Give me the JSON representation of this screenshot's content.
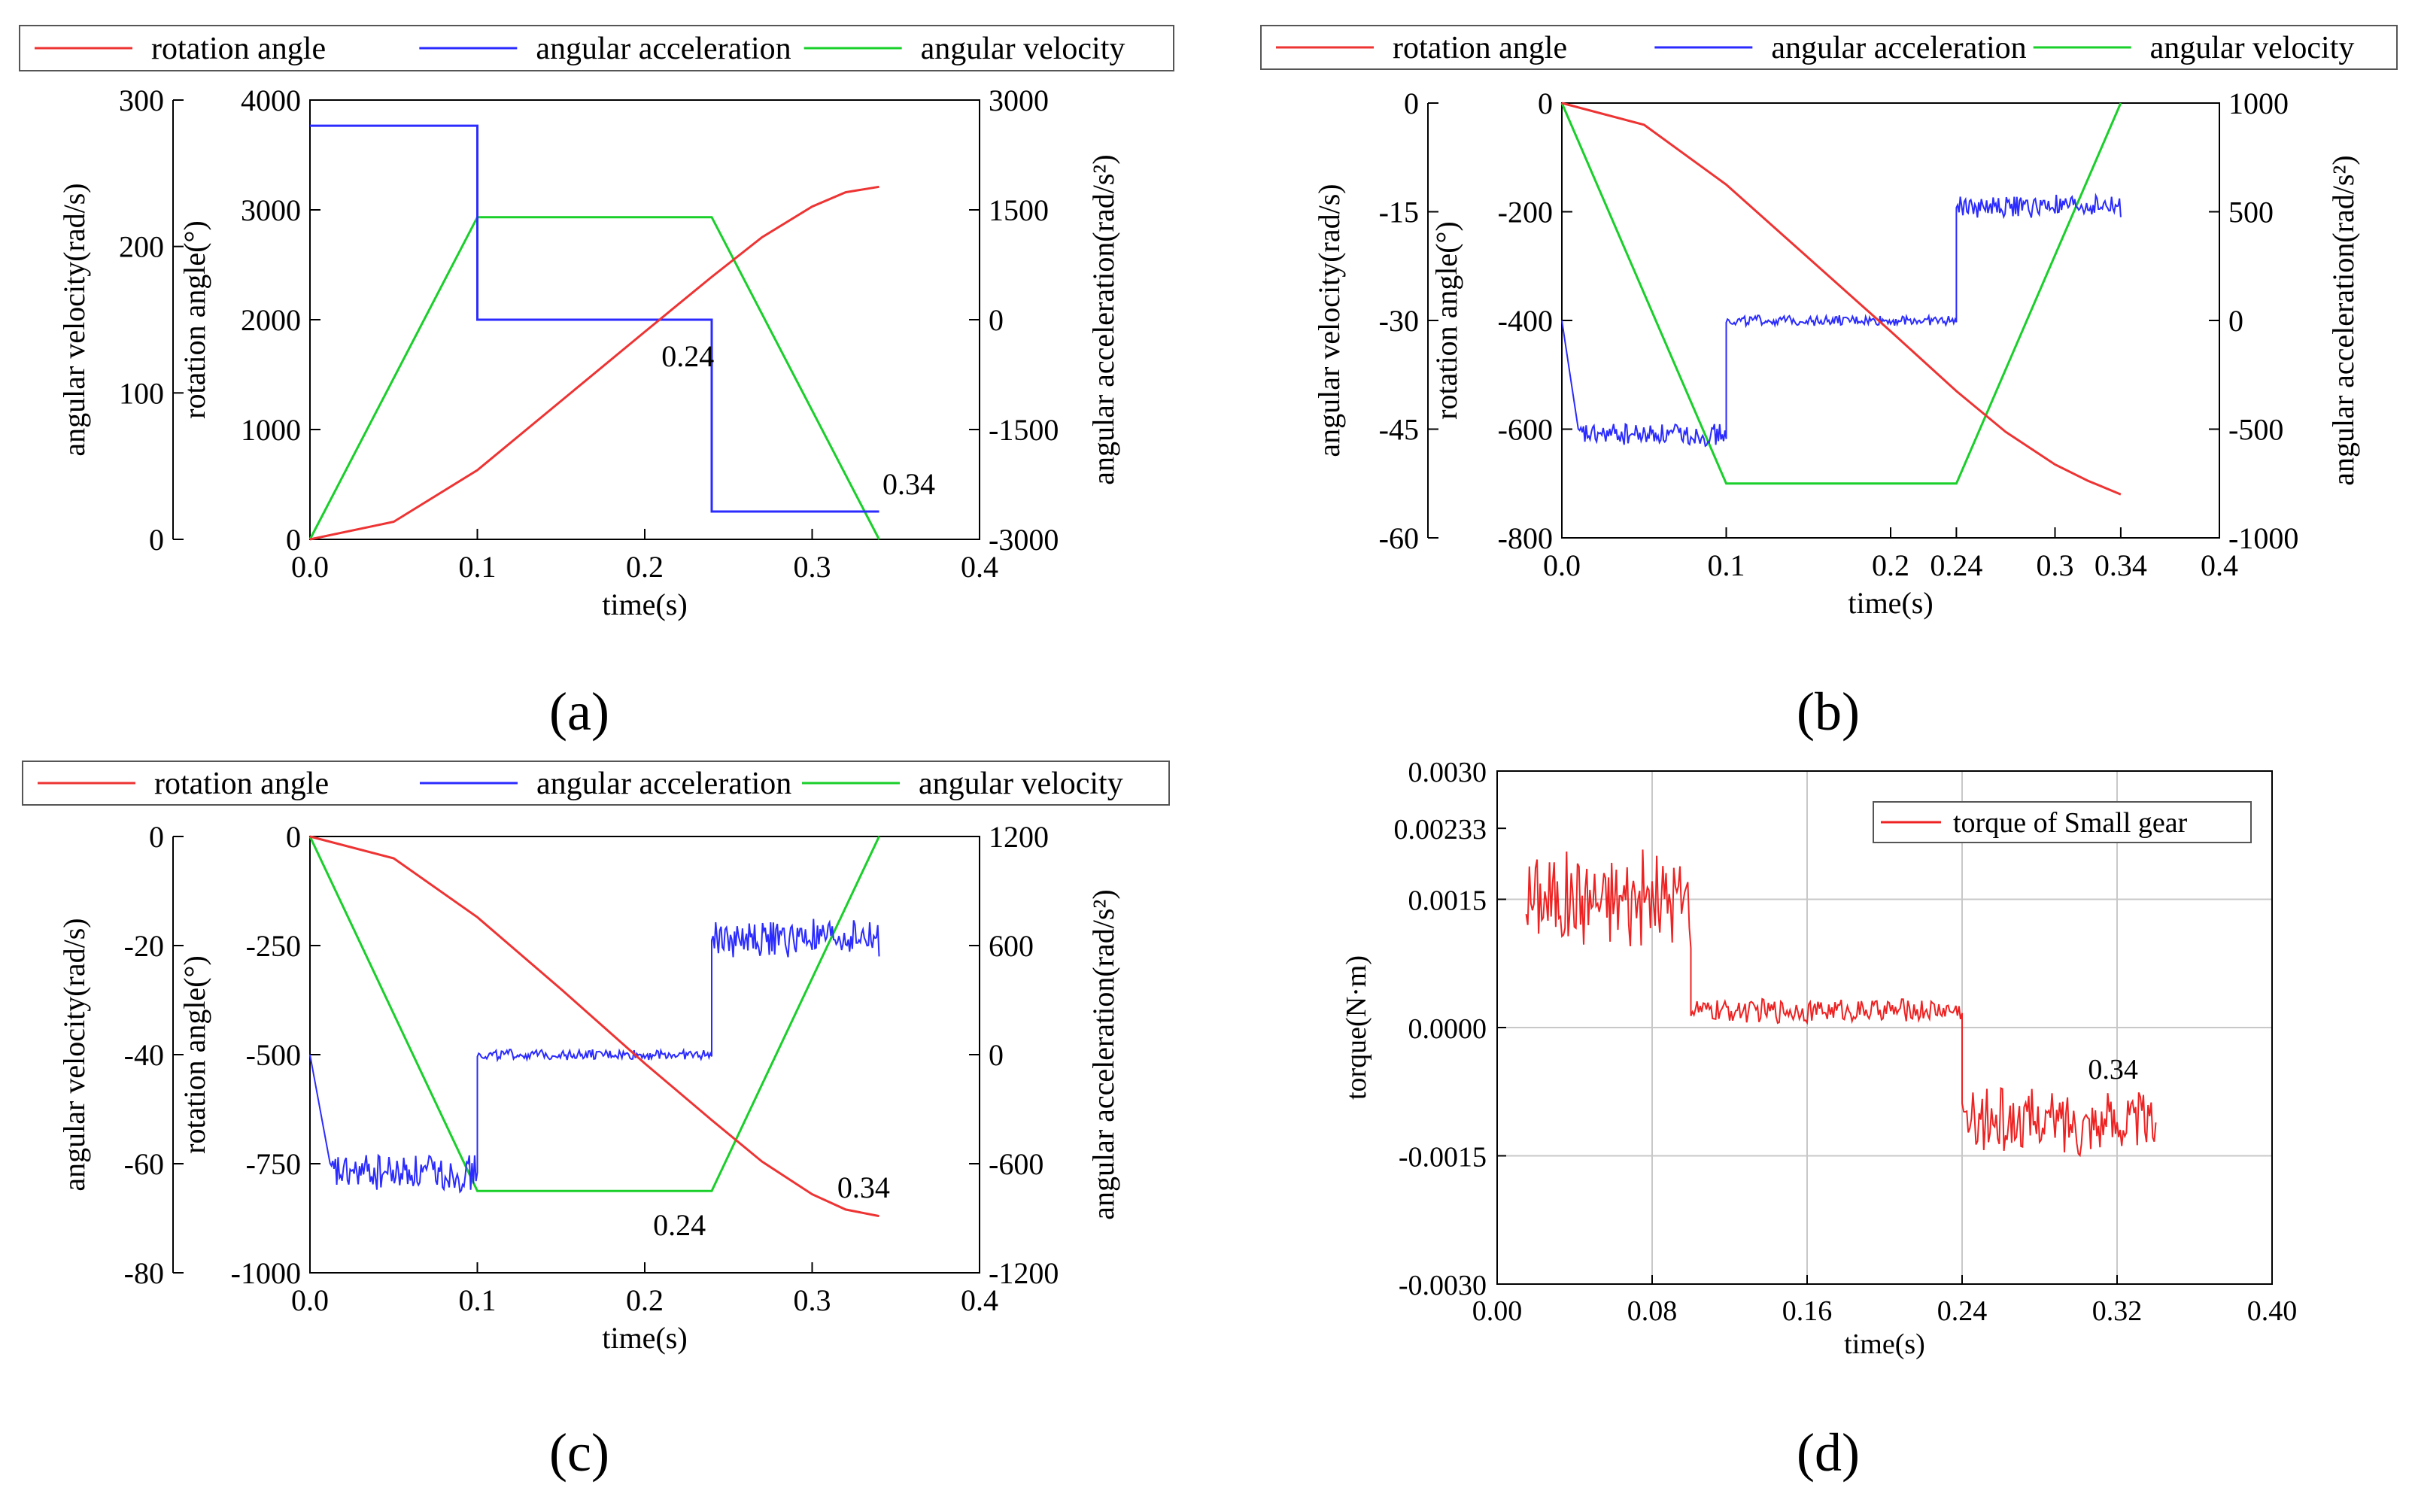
{
  "figure": {
    "panel_labels": [
      "(a)",
      "(b)",
      "(c)",
      "(d)"
    ]
  },
  "colors": {
    "rotation_angle": "#ee3333",
    "angular_acceleration": "#2b2bff",
    "angular_velocity": "#19cf2a",
    "torque": "#ee2222",
    "axis": "#000000",
    "grid": "#c8c8c8"
  },
  "chart_data": [
    {
      "id": "a",
      "type": "line",
      "legend": [
        "rotation angle",
        "angular acceleration",
        "angular velocity"
      ],
      "xlabel": "time(s)",
      "xlim": [
        0,
        0.4
      ],
      "xticks": [
        "0.0",
        "0.1",
        "0.2",
        "0.3",
        "0.4"
      ],
      "y_left_outer": {
        "label": "angular velocity(rad/s)",
        "range": [
          0,
          300
        ],
        "ticks": [
          "0",
          "100",
          "200",
          "300"
        ]
      },
      "y_left_inner": {
        "label": "rotation angle(°)",
        "range": [
          0,
          4000
        ],
        "ticks": [
          "0",
          "1000",
          "2000",
          "3000",
          "4000"
        ]
      },
      "y_right": {
        "label": "angular acceleration(rad/s²)",
        "range": [
          -3000,
          3000
        ],
        "ticks": [
          "-3000",
          "-1500",
          "0",
          "1500",
          "3000"
        ]
      },
      "annotations": [
        "0.24",
        "0.34"
      ],
      "series": [
        {
          "name": "angular velocity",
          "axis": "outer",
          "x": [
            0,
            0.1,
            0.24,
            0.34
          ],
          "y": [
            0,
            220,
            220,
            0
          ]
        },
        {
          "name": "angular acceleration",
          "axis": "right",
          "x": [
            0,
            0.1,
            0.1,
            0.24,
            0.24,
            0.34
          ],
          "y": [
            2650,
            2650,
            0,
            0,
            -2620,
            -2620
          ]
        },
        {
          "name": "rotation angle",
          "axis": "inner",
          "x": [
            0,
            0.05,
            0.1,
            0.15,
            0.2,
            0.24,
            0.27,
            0.3,
            0.32,
            0.34
          ],
          "y": [
            0,
            160,
            630,
            1260,
            1890,
            2390,
            2750,
            3030,
            3160,
            3210
          ]
        }
      ]
    },
    {
      "id": "b",
      "type": "line",
      "legend": [
        "rotation angle",
        "angular acceleration",
        "angular velocity"
      ],
      "xlabel": "time(s)",
      "xlim": [
        0,
        0.4
      ],
      "xticks": [
        "0.0",
        "0.1",
        "0.2",
        "0.24",
        "0.3",
        "0.34",
        "0.4"
      ],
      "xtick_values": [
        0,
        0.1,
        0.2,
        0.24,
        0.3,
        0.34,
        0.4
      ],
      "y_left_outer": {
        "label": "angular velocity(rad/s)",
        "range": [
          -60,
          0
        ],
        "ticks": [
          "-60",
          "-45",
          "-30",
          "-15",
          "0"
        ]
      },
      "y_left_inner": {
        "label": "rotation angle(°)",
        "range": [
          -800,
          0
        ],
        "ticks": [
          "-800",
          "-600",
          "-400",
          "-200",
          "0"
        ]
      },
      "y_right": {
        "label": "angular acceleration(rad/s²)",
        "range": [
          -1000,
          1000
        ],
        "ticks": [
          "-1000",
          "-500",
          "0",
          "500",
          "1000"
        ]
      },
      "series": [
        {
          "name": "angular velocity",
          "axis": "outer",
          "x": [
            0,
            0.1,
            0.24,
            0.34
          ],
          "y": [
            0,
            -52.5,
            -52.5,
            0
          ]
        },
        {
          "name": "angular acceleration",
          "axis": "right",
          "segments": [
            {
              "x0": 0.01,
              "x1": 0.1,
              "mean": -525,
              "amp": 55
            },
            {
              "x0": 0.1,
              "x1": 0.24,
              "mean": 0,
              "amp": 25
            },
            {
              "x0": 0.24,
              "x1": 0.34,
              "mean": 525,
              "amp": 55
            }
          ],
          "start": {
            "x": 0,
            "y": 0
          }
        },
        {
          "name": "rotation angle",
          "axis": "inner",
          "x": [
            0,
            0.05,
            0.1,
            0.15,
            0.2,
            0.24,
            0.27,
            0.3,
            0.32,
            0.34
          ],
          "y": [
            0,
            -40,
            -150,
            -285,
            -420,
            -530,
            -605,
            -665,
            -695,
            -720
          ]
        }
      ]
    },
    {
      "id": "c",
      "type": "line",
      "legend": [
        "rotation angle",
        "angular acceleration",
        "angular velocity"
      ],
      "xlabel": "time(s)",
      "xlim": [
        0,
        0.4
      ],
      "xticks": [
        "0.0",
        "0.1",
        "0.2",
        "0.3",
        "0.4"
      ],
      "y_left_outer": {
        "label": "angular velocity(rad/s)",
        "range": [
          -80,
          0
        ],
        "ticks": [
          "-80",
          "-60",
          "-40",
          "-20",
          "0"
        ]
      },
      "y_left_inner": {
        "label": "rotation angle(°)",
        "range": [
          -1000,
          0
        ],
        "ticks": [
          "-1000",
          "-750",
          "-500",
          "-250",
          "0"
        ]
      },
      "y_right": {
        "label": "angular acceleration(rad/s²)",
        "range": [
          -1200,
          1200
        ],
        "ticks": [
          "-1200",
          "-600",
          "0",
          "600",
          "1200"
        ]
      },
      "annotations": [
        "0.24",
        "0.34"
      ],
      "series": [
        {
          "name": "angular velocity",
          "axis": "outer",
          "x": [
            0,
            0.1,
            0.24,
            0.34
          ],
          "y": [
            0,
            -65,
            -65,
            0
          ]
        },
        {
          "name": "angular acceleration",
          "axis": "right",
          "segments": [
            {
              "x0": 0.012,
              "x1": 0.1,
              "mean": -650,
              "amp": 110
            },
            {
              "x0": 0.1,
              "x1": 0.24,
              "mean": 0,
              "amp": 30
            },
            {
              "x0": 0.24,
              "x1": 0.34,
              "mean": 640,
              "amp": 110
            }
          ],
          "start": {
            "x": 0,
            "y": 0
          }
        },
        {
          "name": "rotation angle",
          "axis": "inner",
          "x": [
            0,
            0.05,
            0.1,
            0.15,
            0.2,
            0.24,
            0.27,
            0.3,
            0.32,
            0.34
          ],
          "y": [
            0,
            -50,
            -185,
            -350,
            -520,
            -650,
            -745,
            -820,
            -855,
            -870
          ]
        }
      ]
    },
    {
      "id": "d",
      "type": "line",
      "legend": [
        "torque of Small gear"
      ],
      "xlabel": "time(s)",
      "ylabel": "torque(N·m)",
      "xlim": [
        0,
        0.4
      ],
      "ylim": [
        -0.003,
        0.003
      ],
      "xticks": [
        "0.00",
        "0.08",
        "0.16",
        "0.24",
        "0.32",
        "0.40"
      ],
      "yticks": [
        "-0.0030",
        "-0.0015",
        "0.0000",
        "0.0015",
        "0.00233",
        "0.0030"
      ],
      "ytick_values": [
        -0.003,
        -0.0015,
        0,
        0.0015,
        0.00233,
        0.003
      ],
      "annotations": [
        "0.34"
      ],
      "series": [
        {
          "name": "torque of Small gear",
          "segments": [
            {
              "x0": 0.015,
              "x1": 0.1,
              "mean": 0.0015,
              "amp": 0.0006
            },
            {
              "x0": 0.1,
              "x1": 0.24,
              "mean": 0.0002,
              "amp": 0.00015
            },
            {
              "x0": 0.24,
              "x1": 0.34,
              "mean": -0.0011,
              "amp": 0.0004
            }
          ]
        }
      ]
    }
  ]
}
